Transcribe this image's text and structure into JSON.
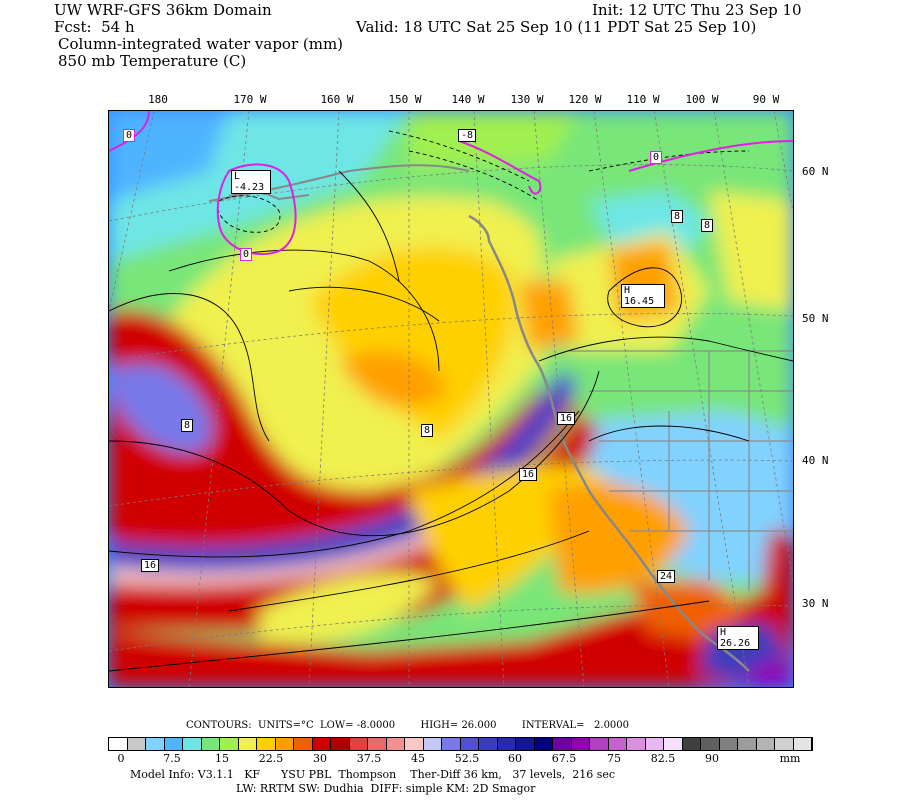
{
  "header": {
    "line1_left": "UW WRF-GFS 36km Domain",
    "line1_right": "Init: 12 UTC Thu 23 Sep 10",
    "line2_left": "Fcst:  54 h",
    "line2_right": "Valid: 18 UTC Sat 25 Sep 10 (11 PDT Sat 25 Sep 10)",
    "line3": "Column-integrated water vapor (mm)",
    "line4": "850 mb Temperature (C)"
  },
  "map": {
    "longitude_labels": [
      "180",
      "170 W",
      "160 W",
      "150 W",
      "140 W",
      "130 W",
      "120 W",
      "110 W",
      "100 W",
      "90 W"
    ],
    "latitude_labels": [
      "60 N",
      "50 N",
      "40 N",
      "30 N"
    ],
    "contour_labels": [
      "0",
      "-8",
      "0",
      "0",
      "8",
      "8",
      "8",
      "8",
      "16",
      "16",
      "16",
      "24"
    ],
    "low": {
      "letter": "L",
      "value": "-4.23"
    },
    "high_north": {
      "letter": "H",
      "value": "16.45"
    },
    "high_south": {
      "letter": "H",
      "value": "26.26"
    }
  },
  "legend": {
    "contours_text": "CONTOURS:  UNITS=°C  LOW= -8.0000        HIGH= 26.000        INTERVAL=   2.0000",
    "ticks": [
      "0",
      "7.5",
      "15",
      "22.5",
      "30",
      "37.5",
      "45",
      "52.5",
      "60",
      "67.5",
      "75",
      "82.5",
      "90",
      "mm"
    ],
    "colors": [
      "#ffffff",
      "#c8c8c8",
      "#82d2ff",
      "#50b4ff",
      "#6ee6e6",
      "#78e678",
      "#a0f050",
      "#f0f050",
      "#ffd000",
      "#ffa000",
      "#f06000",
      "#d00000",
      "#b00000",
      "#e04040",
      "#e86a6a",
      "#f09090",
      "#f8c8c8",
      "#c8c8f8",
      "#7878e8",
      "#5050d0",
      "#3c3cc0",
      "#2828b0",
      "#141496",
      "#000080",
      "#7000a0",
      "#9000b0",
      "#b040c0",
      "#c860d0",
      "#d890e0",
      "#e8b8f0",
      "#f8e0ff",
      "#404040",
      "#606060",
      "#808080",
      "#9c9c9c",
      "#b4b4b4",
      "#d0d0d0",
      "#e4e4e4"
    ]
  },
  "footer": {
    "line1": "Model Info: V3.1.1   KF      YSU PBL  Thompson    Ther-Diff 36 km,   37 levels,  216 sec",
    "line2": "LW: RRTM SW: Dudhia  DIFF: simple KM: 2D Smagor"
  }
}
